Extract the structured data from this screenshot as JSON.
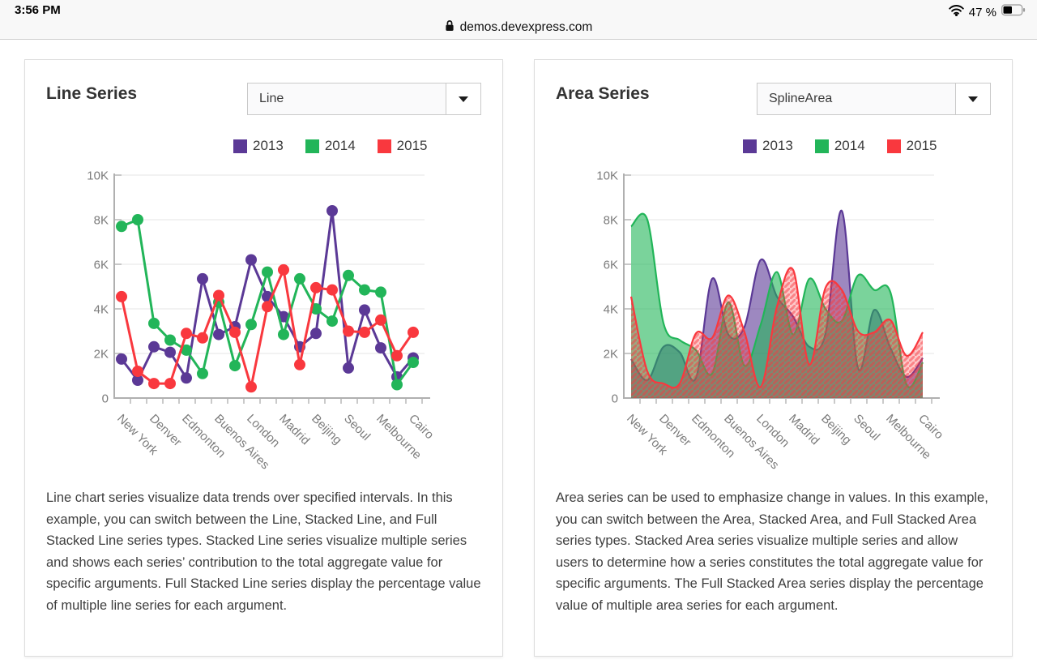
{
  "status_bar": {
    "time": "3:56 PM",
    "battery_percent": "47 %"
  },
  "browser_bar": {
    "url": "demos.devexpress.com"
  },
  "panels": [
    {
      "title": "Line Series",
      "dropdown_value": "Line",
      "description": "Line chart series visualize data trends over specified intervals. In this example, you can switch between the Line, Stacked Line, and Full Stacked Line series types. Stacked Line series visualize multiple series and shows each series’ contribution to the total aggregate value for specific arguments. Full Stacked Line series display the percentage value of multiple line series for each argument."
    },
    {
      "title": "Area Series",
      "dropdown_value": "SplineArea",
      "description": "Area series can be used to emphasize change in values. In this example, you can switch between the Area, Stacked Area, and Full Stacked Area series types. Stacked Area series visualize multiple series and allow users to determine how a series constitutes the total aggregate value for specific arguments. The Full Stacked Area series display the percentage value of multiple area series for each argument."
    }
  ],
  "chart_data": [
    {
      "type": "line",
      "title": "Line Series",
      "categories": [
        "New York",
        "Denver",
        "Edmonton",
        "Buenos Aires",
        "London",
        "Madrid",
        "Beijing",
        "Seoul",
        "Melbourne",
        "Cairo"
      ],
      "ylim": [
        0,
        10000
      ],
      "y_tick_labels": [
        "0",
        "2K",
        "4K",
        "6K",
        "8K",
        "10K"
      ],
      "grid": true,
      "legend_position": "top",
      "series": [
        {
          "name": "2013",
          "color": "#5b3996",
          "values": [
            1750,
            800,
            2300,
            2050,
            900,
            5350,
            2850,
            3200,
            6200,
            4550,
            3650,
            2300,
            2900,
            8400,
            1350,
            3950,
            2250,
            950,
            1800
          ]
        },
        {
          "name": "2014",
          "color": "#22b559",
          "values": [
            7700,
            8000,
            3350,
            2600,
            2150,
            1100,
            4300,
            1450,
            3300,
            5650,
            2850,
            5350,
            4000,
            3450,
            5500,
            4850,
            4750,
            600,
            1600
          ]
        },
        {
          "name": "2015",
          "color": "#f9383e",
          "values": [
            4550,
            1200,
            650,
            650,
            2900,
            2700,
            4600,
            2950,
            500,
            4100,
            5750,
            1500,
            4950,
            4850,
            3000,
            2950,
            3500,
            1900,
            2950
          ]
        }
      ]
    },
    {
      "type": "area",
      "spline": true,
      "title": "Area Series",
      "categories": [
        "New York",
        "Denver",
        "Edmonton",
        "Buenos Aires",
        "London",
        "Madrid",
        "Beijing",
        "Seoul",
        "Melbourne",
        "Cairo"
      ],
      "ylim": [
        0,
        10000
      ],
      "y_tick_labels": [
        "0",
        "2K",
        "4K",
        "6K",
        "8K",
        "10K"
      ],
      "grid": true,
      "legend_position": "top",
      "fill_opacity": 0.6,
      "hatch_series": "2015",
      "hatch_bg": "rgba(249,56,62,0.28)",
      "hatch_fg": "rgba(249,56,62,0.48)",
      "series": [
        {
          "name": "2013",
          "color": "#5b3996",
          "values": [
            1750,
            800,
            2300,
            2050,
            900,
            5350,
            2850,
            3200,
            6200,
            4550,
            3650,
            2300,
            2900,
            8400,
            1350,
            3950,
            2250,
            950,
            1800
          ]
        },
        {
          "name": "2014",
          "color": "#22b559",
          "values": [
            7700,
            8000,
            3350,
            2600,
            2150,
            1100,
            4300,
            1450,
            3300,
            5650,
            2850,
            5350,
            4000,
            3450,
            5500,
            4850,
            4750,
            600,
            1600
          ]
        },
        {
          "name": "2015",
          "color": "#f9383e",
          "values": [
            4550,
            1200,
            650,
            650,
            2900,
            2700,
            4600,
            2950,
            500,
            4100,
            5750,
            1500,
            4950,
            4850,
            3000,
            2950,
            3500,
            1900,
            2950
          ]
        }
      ]
    }
  ]
}
